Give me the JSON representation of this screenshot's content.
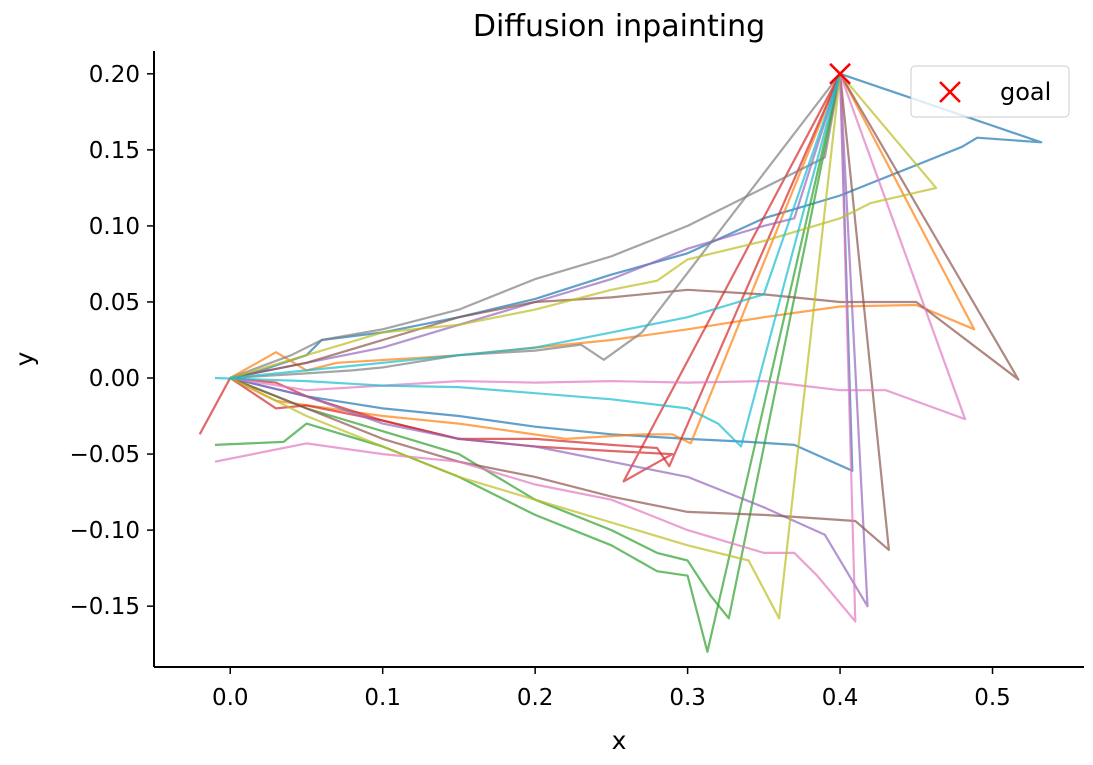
{
  "chart_data": {
    "type": "line",
    "title": "Diffusion inpainting",
    "xlabel": "x",
    "ylabel": "y",
    "xlim": [
      -0.05,
      0.56
    ],
    "ylim": [
      -0.19,
      0.215
    ],
    "xticks": [
      {
        "value": 0.0,
        "label": "0.0"
      },
      {
        "value": 0.1,
        "label": "0.1"
      },
      {
        "value": 0.2,
        "label": "0.2"
      },
      {
        "value": 0.3,
        "label": "0.3"
      },
      {
        "value": 0.4,
        "label": "0.4"
      },
      {
        "value": 0.5,
        "label": "0.5"
      }
    ],
    "yticks": [
      {
        "value": 0.2,
        "label": "0.20"
      },
      {
        "value": 0.15,
        "label": "0.15"
      },
      {
        "value": 0.1,
        "label": "0.10"
      },
      {
        "value": 0.05,
        "label": "0.05"
      },
      {
        "value": 0.0,
        "label": "0.00"
      },
      {
        "value": -0.05,
        "label": "−0.05"
      },
      {
        "value": -0.1,
        "label": "−0.10"
      },
      {
        "value": -0.15,
        "label": "−0.15"
      }
    ],
    "grid": false,
    "legend": {
      "placement": "top-right",
      "entries": [
        {
          "label": "goal",
          "marker": "x",
          "color": "#ff0000"
        }
      ]
    },
    "goal": {
      "x": 0.4,
      "y": 0.2,
      "label": "goal",
      "color": "#ff0000"
    },
    "series": [
      {
        "color": "#1f77b4",
        "points": [
          [
            0,
            0
          ],
          [
            0.02,
            0.005
          ],
          [
            0.05,
            0.015
          ],
          [
            0.06,
            0.025
          ],
          [
            0.1,
            0.03
          ],
          [
            0.15,
            0.04
          ],
          [
            0.2,
            0.052
          ],
          [
            0.25,
            0.068
          ],
          [
            0.3,
            0.082
          ],
          [
            0.35,
            0.105
          ],
          [
            0.4,
            0.12
          ],
          [
            0.45,
            0.14
          ],
          [
            0.48,
            0.152
          ],
          [
            0.49,
            0.158
          ],
          [
            0.532,
            0.155
          ],
          [
            0.4,
            0.2
          ]
        ]
      },
      {
        "color": "#1f77b4",
        "points": [
          [
            0,
            0
          ],
          [
            0.05,
            -0.012
          ],
          [
            0.1,
            -0.02
          ],
          [
            0.15,
            -0.025
          ],
          [
            0.2,
            -0.032
          ],
          [
            0.25,
            -0.037
          ],
          [
            0.3,
            -0.04
          ],
          [
            0.34,
            -0.042
          ],
          [
            0.37,
            -0.044
          ],
          [
            0.408,
            -0.061
          ],
          [
            0.4,
            0.2
          ]
        ]
      },
      {
        "color": "#ff7f0e",
        "points": [
          [
            0,
            0
          ],
          [
            0.03,
            0.017
          ],
          [
            0.05,
            0.005
          ],
          [
            0.07,
            0.01
          ],
          [
            0.12,
            0.013
          ],
          [
            0.15,
            0.015
          ],
          [
            0.2,
            0.02
          ],
          [
            0.25,
            0.025
          ],
          [
            0.3,
            0.032
          ],
          [
            0.35,
            0.04
          ],
          [
            0.4,
            0.047
          ],
          [
            0.45,
            0.048
          ],
          [
            0.488,
            0.032
          ],
          [
            0.4,
            0.2
          ]
        ]
      },
      {
        "color": "#ff7f0e",
        "points": [
          [
            0,
            0
          ],
          [
            0.03,
            -0.015
          ],
          [
            0.1,
            -0.025
          ],
          [
            0.15,
            -0.03
          ],
          [
            0.22,
            -0.04
          ],
          [
            0.27,
            -0.037
          ],
          [
            0.29,
            -0.037
          ],
          [
            0.302,
            -0.043
          ],
          [
            0.4,
            0.2
          ]
        ]
      },
      {
        "color": "#2ca02c",
        "points": [
          [
            0,
            0
          ],
          [
            0.05,
            -0.02
          ],
          [
            0.1,
            -0.035
          ],
          [
            0.15,
            -0.05
          ],
          [
            0.2,
            -0.08
          ],
          [
            0.25,
            -0.1
          ],
          [
            0.28,
            -0.115
          ],
          [
            0.3,
            -0.12
          ],
          [
            0.315,
            -0.143
          ],
          [
            0.327,
            -0.158
          ],
          [
            0.4,
            0.2
          ]
        ]
      },
      {
        "color": "#2ca02c",
        "points": [
          [
            -0.01,
            -0.044
          ],
          [
            0.035,
            -0.042
          ],
          [
            0.05,
            -0.03
          ],
          [
            0.1,
            -0.045
          ],
          [
            0.15,
            -0.065
          ],
          [
            0.2,
            -0.09
          ],
          [
            0.25,
            -0.11
          ],
          [
            0.28,
            -0.127
          ],
          [
            0.3,
            -0.13
          ],
          [
            0.313,
            -0.18
          ],
          [
            0.4,
            0.2
          ]
        ]
      },
      {
        "color": "#d62728",
        "points": [
          [
            -0.02,
            -0.037
          ],
          [
            0,
            0
          ],
          [
            0.03,
            -0.02
          ],
          [
            0.05,
            -0.018
          ],
          [
            0.1,
            -0.028
          ],
          [
            0.15,
            -0.04
          ],
          [
            0.2,
            -0.045
          ],
          [
            0.25,
            -0.048
          ],
          [
            0.29,
            -0.05
          ],
          [
            0.258,
            -0.068
          ],
          [
            0.4,
            0.2
          ]
        ]
      },
      {
        "color": "#d62728",
        "points": [
          [
            0,
            0
          ],
          [
            0.03,
            -0.003
          ],
          [
            0.05,
            -0.012
          ],
          [
            0.1,
            -0.028
          ],
          [
            0.15,
            -0.04
          ],
          [
            0.2,
            -0.04
          ],
          [
            0.25,
            -0.044
          ],
          [
            0.28,
            -0.046
          ],
          [
            0.288,
            -0.058
          ],
          [
            0.4,
            0.2
          ]
        ]
      },
      {
        "color": "#9467bd",
        "points": [
          [
            0,
            0
          ],
          [
            0.05,
            0.01
          ],
          [
            0.1,
            0.02
          ],
          [
            0.15,
            0.035
          ],
          [
            0.2,
            0.05
          ],
          [
            0.25,
            0.065
          ],
          [
            0.3,
            0.085
          ],
          [
            0.35,
            0.1
          ],
          [
            0.37,
            0.105
          ],
          [
            0.4,
            0.2
          ]
        ]
      },
      {
        "color": "#9467bd",
        "points": [
          [
            0,
            0
          ],
          [
            0.05,
            -0.012
          ],
          [
            0.1,
            -0.03
          ],
          [
            0.15,
            -0.04
          ],
          [
            0.2,
            -0.045
          ],
          [
            0.25,
            -0.055
          ],
          [
            0.3,
            -0.065
          ],
          [
            0.35,
            -0.085
          ],
          [
            0.39,
            -0.103
          ],
          [
            0.418,
            -0.15
          ],
          [
            0.4,
            0.2
          ]
        ]
      },
      {
        "color": "#8c564b",
        "points": [
          [
            0,
            0
          ],
          [
            0.05,
            0.01
          ],
          [
            0.1,
            0.025
          ],
          [
            0.15,
            0.04
          ],
          [
            0.2,
            0.05
          ],
          [
            0.25,
            0.053
          ],
          [
            0.3,
            0.058
          ],
          [
            0.35,
            0.055
          ],
          [
            0.4,
            0.05
          ],
          [
            0.45,
            0.05
          ],
          [
            0.517,
            -0.001
          ],
          [
            0.4,
            0.2
          ]
        ]
      },
      {
        "color": "#8c564b",
        "points": [
          [
            0,
            0
          ],
          [
            0.05,
            -0.02
          ],
          [
            0.1,
            -0.04
          ],
          [
            0.15,
            -0.055
          ],
          [
            0.2,
            -0.065
          ],
          [
            0.25,
            -0.078
          ],
          [
            0.3,
            -0.088
          ],
          [
            0.35,
            -0.09
          ],
          [
            0.38,
            -0.092
          ],
          [
            0.41,
            -0.094
          ],
          [
            0.432,
            -0.113
          ],
          [
            0.4,
            0.2
          ]
        ]
      },
      {
        "color": "#e377c2",
        "points": [
          [
            -0.01,
            -0.055
          ],
          [
            0.05,
            -0.043
          ],
          [
            0.1,
            -0.05
          ],
          [
            0.15,
            -0.055
          ],
          [
            0.2,
            -0.07
          ],
          [
            0.25,
            -0.08
          ],
          [
            0.3,
            -0.1
          ],
          [
            0.35,
            -0.115
          ],
          [
            0.37,
            -0.115
          ],
          [
            0.385,
            -0.13
          ],
          [
            0.41,
            -0.16
          ],
          [
            0.4,
            0.2
          ]
        ]
      },
      {
        "color": "#e377c2",
        "points": [
          [
            0,
            0
          ],
          [
            0.05,
            -0.008
          ],
          [
            0.1,
            -0.005
          ],
          [
            0.15,
            -0.002
          ],
          [
            0.2,
            -0.003
          ],
          [
            0.25,
            -0.002
          ],
          [
            0.3,
            -0.003
          ],
          [
            0.35,
            -0.002
          ],
          [
            0.4,
            -0.008
          ],
          [
            0.43,
            -0.008
          ],
          [
            0.482,
            -0.027
          ],
          [
            0.4,
            0.2
          ]
        ]
      },
      {
        "color": "#7f7f7f",
        "points": [
          [
            0,
            0
          ],
          [
            0.04,
            0.015
          ],
          [
            0.06,
            0.025
          ],
          [
            0.1,
            0.032
          ],
          [
            0.15,
            0.045
          ],
          [
            0.2,
            0.065
          ],
          [
            0.25,
            0.08
          ],
          [
            0.3,
            0.1
          ],
          [
            0.35,
            0.125
          ],
          [
            0.39,
            0.145
          ],
          [
            0.4,
            0.2
          ]
        ]
      },
      {
        "color": "#7f7f7f",
        "points": [
          [
            0,
            0
          ],
          [
            0.05,
            0.003
          ],
          [
            0.08,
            0.005
          ],
          [
            0.1,
            0.007
          ],
          [
            0.15,
            0.015
          ],
          [
            0.2,
            0.018
          ],
          [
            0.23,
            0.022
          ],
          [
            0.245,
            0.012
          ],
          [
            0.27,
            0.03
          ],
          [
            0.4,
            0.2
          ]
        ]
      },
      {
        "color": "#bcbd22",
        "points": [
          [
            0,
            0
          ],
          [
            0.05,
            0.015
          ],
          [
            0.1,
            0.03
          ],
          [
            0.15,
            0.035
          ],
          [
            0.2,
            0.045
          ],
          [
            0.25,
            0.058
          ],
          [
            0.28,
            0.064
          ],
          [
            0.3,
            0.078
          ],
          [
            0.35,
            0.09
          ],
          [
            0.4,
            0.105
          ],
          [
            0.42,
            0.115
          ],
          [
            0.463,
            0.125
          ],
          [
            0.4,
            0.2
          ]
        ]
      },
      {
        "color": "#bcbd22",
        "points": [
          [
            0,
            0
          ],
          [
            0.05,
            -0.025
          ],
          [
            0.1,
            -0.045
          ],
          [
            0.15,
            -0.065
          ],
          [
            0.2,
            -0.08
          ],
          [
            0.25,
            -0.095
          ],
          [
            0.3,
            -0.11
          ],
          [
            0.34,
            -0.12
          ],
          [
            0.36,
            -0.158
          ],
          [
            0.4,
            0.2
          ]
        ]
      },
      {
        "color": "#17becf",
        "points": [
          [
            0,
            0
          ],
          [
            0.05,
            0.005
          ],
          [
            0.1,
            0.01
          ],
          [
            0.15,
            0.015
          ],
          [
            0.2,
            0.02
          ],
          [
            0.25,
            0.03
          ],
          [
            0.3,
            0.04
          ],
          [
            0.35,
            0.055
          ],
          [
            0.4,
            0.2
          ]
        ]
      },
      {
        "color": "#17becf",
        "points": [
          [
            -0.01,
            0
          ],
          [
            0.05,
            -0.002
          ],
          [
            0.1,
            -0.005
          ],
          [
            0.15,
            -0.006
          ],
          [
            0.2,
            -0.01
          ],
          [
            0.25,
            -0.014
          ],
          [
            0.3,
            -0.02
          ],
          [
            0.32,
            -0.03
          ],
          [
            0.335,
            -0.045
          ],
          [
            0.4,
            0.2
          ]
        ]
      }
    ]
  }
}
